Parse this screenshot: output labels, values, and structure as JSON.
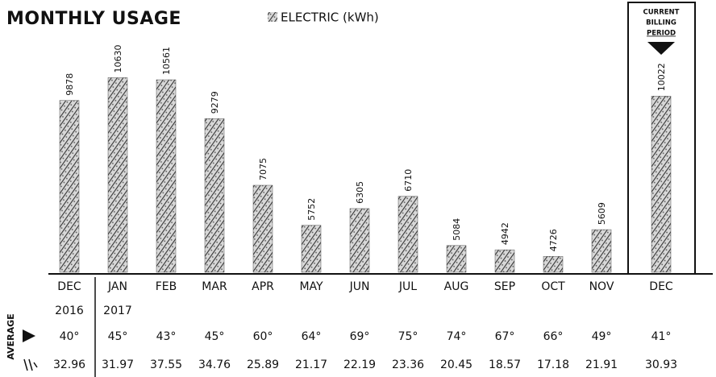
{
  "chart_data": {
    "type": "bar",
    "title": "MONTHLY USAGE",
    "legend": "ELECTRIC (kWh)",
    "current_period": [
      "CURRENT",
      "BILLING",
      "PERIOD"
    ],
    "categories": [
      "DEC",
      "JAN",
      "FEB",
      "MAR",
      "APR",
      "MAY",
      "JUN",
      "JUL",
      "AUG",
      "SEP",
      "OCT",
      "NOV",
      "DEC"
    ],
    "years": [
      "2016",
      "2017",
      null,
      null,
      null,
      null,
      null,
      null,
      null,
      null,
      null,
      null,
      null
    ],
    "values": [
      9878,
      10630,
      10561,
      9279,
      7075,
      5752,
      6305,
      6710,
      5084,
      4942,
      4726,
      5609,
      10022
    ],
    "ylim": [
      4200,
      11600
    ],
    "average_label": "AVERAGE",
    "temperatures": [
      "40°",
      "45°",
      "43°",
      "45°",
      "60°",
      "64°",
      "69°",
      "75°",
      "74°",
      "67°",
      "66°",
      "49°",
      "41°"
    ],
    "daily": [
      "32.96",
      "31.97",
      "37.55",
      "34.76",
      "25.89",
      "21.17",
      "22.19",
      "23.36",
      "20.45",
      "18.57",
      "17.18",
      "21.91",
      "30.93"
    ],
    "color": "#555555"
  }
}
